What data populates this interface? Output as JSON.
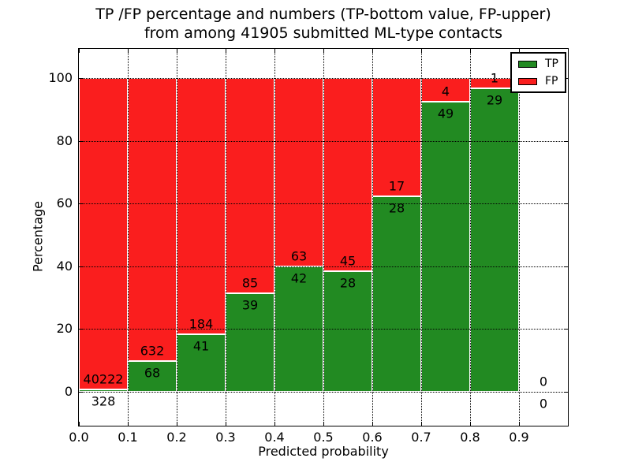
{
  "title": {
    "line1": "TP /FP percentage and numbers (TP-bottom value, FP-upper)",
    "line2": "from among 41905 submitted ML-type contacts"
  },
  "axes": {
    "xlabel": "Predicted probability",
    "ylabel": "Percentage"
  },
  "legend": {
    "items": [
      {
        "label": "TP",
        "color": "#228a22"
      },
      {
        "label": "FP",
        "color": "#fa1e1e"
      }
    ]
  },
  "colors": {
    "tp": "#228a22",
    "fp": "#fa1e1e",
    "grid": "#000000",
    "frame": "#000000",
    "background": "#ffffff"
  },
  "chart_data": {
    "type": "bar",
    "variant": "stacked-percentage",
    "title": "TP /FP percentage and numbers (TP-bottom value, FP-upper) from among 41905 submitted ML-type contacts",
    "xlabel": "Predicted probability",
    "ylabel": "Percentage",
    "xlim": [
      0.0,
      1.0
    ],
    "ylim": [
      -10.8,
      109.3
    ],
    "grid": true,
    "legend_position": "upper right",
    "xticks": [
      {
        "label": "0.0",
        "value": 0.0
      },
      {
        "label": "0.1",
        "value": 0.1
      },
      {
        "label": "0.2",
        "value": 0.2
      },
      {
        "label": "0.3",
        "value": 0.3
      },
      {
        "label": "0.4",
        "value": 0.4
      },
      {
        "label": "0.5",
        "value": 0.5
      },
      {
        "label": "0.6",
        "value": 0.6
      },
      {
        "label": "0.7",
        "value": 0.7
      },
      {
        "label": "0.8",
        "value": 0.8
      },
      {
        "label": "0.9",
        "value": 0.9
      }
    ],
    "yticks": [
      0,
      20,
      40,
      60,
      80,
      100
    ],
    "bins": [
      {
        "x0": 0.0,
        "x1": 0.1,
        "tp": 328,
        "fp": 40222
      },
      {
        "x0": 0.1,
        "x1": 0.2,
        "tp": 68,
        "fp": 632
      },
      {
        "x0": 0.2,
        "x1": 0.3,
        "tp": 41,
        "fp": 184
      },
      {
        "x0": 0.3,
        "x1": 0.4,
        "tp": 39,
        "fp": 85
      },
      {
        "x0": 0.4,
        "x1": 0.5,
        "tp": 42,
        "fp": 63
      },
      {
        "x0": 0.5,
        "x1": 0.6,
        "tp": 28,
        "fp": 45
      },
      {
        "x0": 0.6,
        "x1": 0.7,
        "tp": 28,
        "fp": 17
      },
      {
        "x0": 0.7,
        "x1": 0.8,
        "tp": 49,
        "fp": 4
      },
      {
        "x0": 0.8,
        "x1": 0.9,
        "tp": 29,
        "fp": 1
      },
      {
        "x0": 0.9,
        "x1": 1.0,
        "tp": 0,
        "fp": 0
      }
    ],
    "series": [
      {
        "name": "TP",
        "values": [
          328,
          68,
          41,
          39,
          42,
          28,
          28,
          49,
          29,
          0
        ]
      },
      {
        "name": "FP",
        "values": [
          40222,
          632,
          184,
          85,
          63,
          45,
          17,
          4,
          1,
          0
        ]
      }
    ]
  }
}
